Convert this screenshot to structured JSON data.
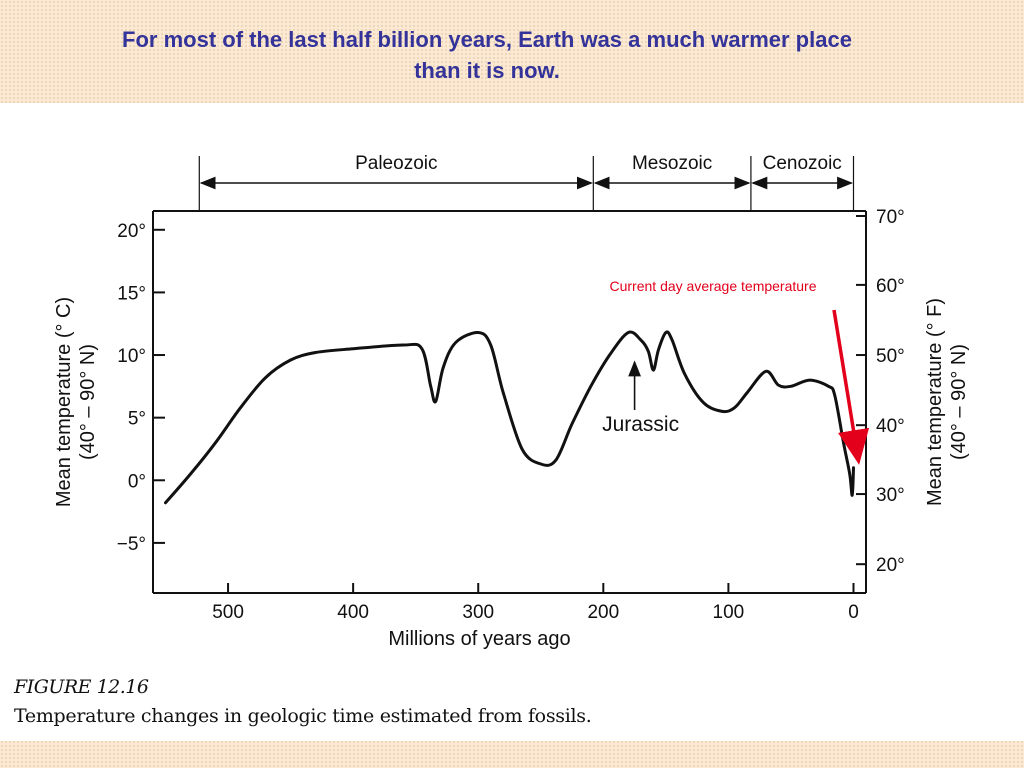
{
  "slide": {
    "title_line1": "For most of the last half billion years, Earth was a much warmer place",
    "title_line2": "than it is now.",
    "figure_label": "FIGURE 12.16",
    "figure_caption": "Temperature changes in geologic time estimated from fossils.",
    "background_color": "#fbe9d3",
    "title_color": "#33339a"
  },
  "chart_data": {
    "type": "line",
    "xlabel": "Millions of years ago",
    "ylabel_left_line1": "Mean temperature (° C)",
    "ylabel_left_line2": "(40° – 90° N)",
    "ylabel_right_line1": "Mean temperature (° F)",
    "ylabel_right_line2": "(40° – 90° N)",
    "xlim": [
      560,
      -10
    ],
    "ylim": [
      -9,
      21.5
    ],
    "x_ticks": [
      {
        "value": 500,
        "label": "500"
      },
      {
        "value": 400,
        "label": "400"
      },
      {
        "value": 300,
        "label": "300"
      },
      {
        "value": 200,
        "label": "200"
      },
      {
        "value": 100,
        "label": "100"
      },
      {
        "value": 0,
        "label": "0"
      }
    ],
    "y_ticks_left": [
      {
        "value": 20,
        "label": "20°"
      },
      {
        "value": 15,
        "label": "15°"
      },
      {
        "value": 10,
        "label": "10°"
      },
      {
        "value": 5,
        "label": "5°"
      },
      {
        "value": 0,
        "label": "0°"
      },
      {
        "value": -5,
        "label": "−5°"
      }
    ],
    "y_ticks_right": [
      {
        "value": 21.1,
        "label": "70°"
      },
      {
        "value": 15.6,
        "label": "60°"
      },
      {
        "value": 10.0,
        "label": "50°"
      },
      {
        "value": 4.4,
        "label": "40°"
      },
      {
        "value": -1.1,
        "label": "30°"
      },
      {
        "value": -6.7,
        "label": "20°"
      }
    ],
    "eras": [
      {
        "name": "Paleozoic",
        "start": 523,
        "end": 208
      },
      {
        "name": "Mesozoic",
        "start": 208,
        "end": 82
      },
      {
        "name": "Cenozoic",
        "start": 82,
        "end": 0
      }
    ],
    "series": [
      {
        "x": [
          550,
          530,
          510,
          490,
          470,
          450,
          430,
          400,
          360,
          345,
          338,
          334,
          328,
          318,
          300,
          290,
          280,
          265,
          250,
          238,
          225,
          210,
          195,
          180,
          170,
          164,
          160,
          156,
          150,
          145,
          135,
          120,
          105,
          95,
          85,
          70,
          60,
          50,
          35,
          20,
          15,
          8,
          3,
          1,
          0
        ],
        "y": [
          -1.8,
          0.5,
          3,
          5.8,
          8.2,
          9.6,
          10.2,
          10.5,
          10.8,
          10.5,
          7.5,
          6.3,
          9.0,
          11.0,
          11.8,
          10.8,
          7.0,
          2.5,
          1.3,
          1.6,
          4.5,
          7.5,
          10.0,
          11.8,
          11.2,
          10.3,
          8.8,
          10.4,
          11.8,
          11.2,
          8.5,
          6.2,
          5.5,
          5.8,
          7.0,
          8.7,
          7.6,
          7.5,
          8.0,
          7.5,
          6.8,
          3.0,
          0.5,
          -1.2,
          1.0
        ]
      }
    ],
    "annotations": [
      {
        "text": "Jurassic",
        "x": 175,
        "y": 10.0
      },
      {
        "text": "Current day average temperature",
        "color": "#e3001b"
      }
    ],
    "grid": false
  }
}
